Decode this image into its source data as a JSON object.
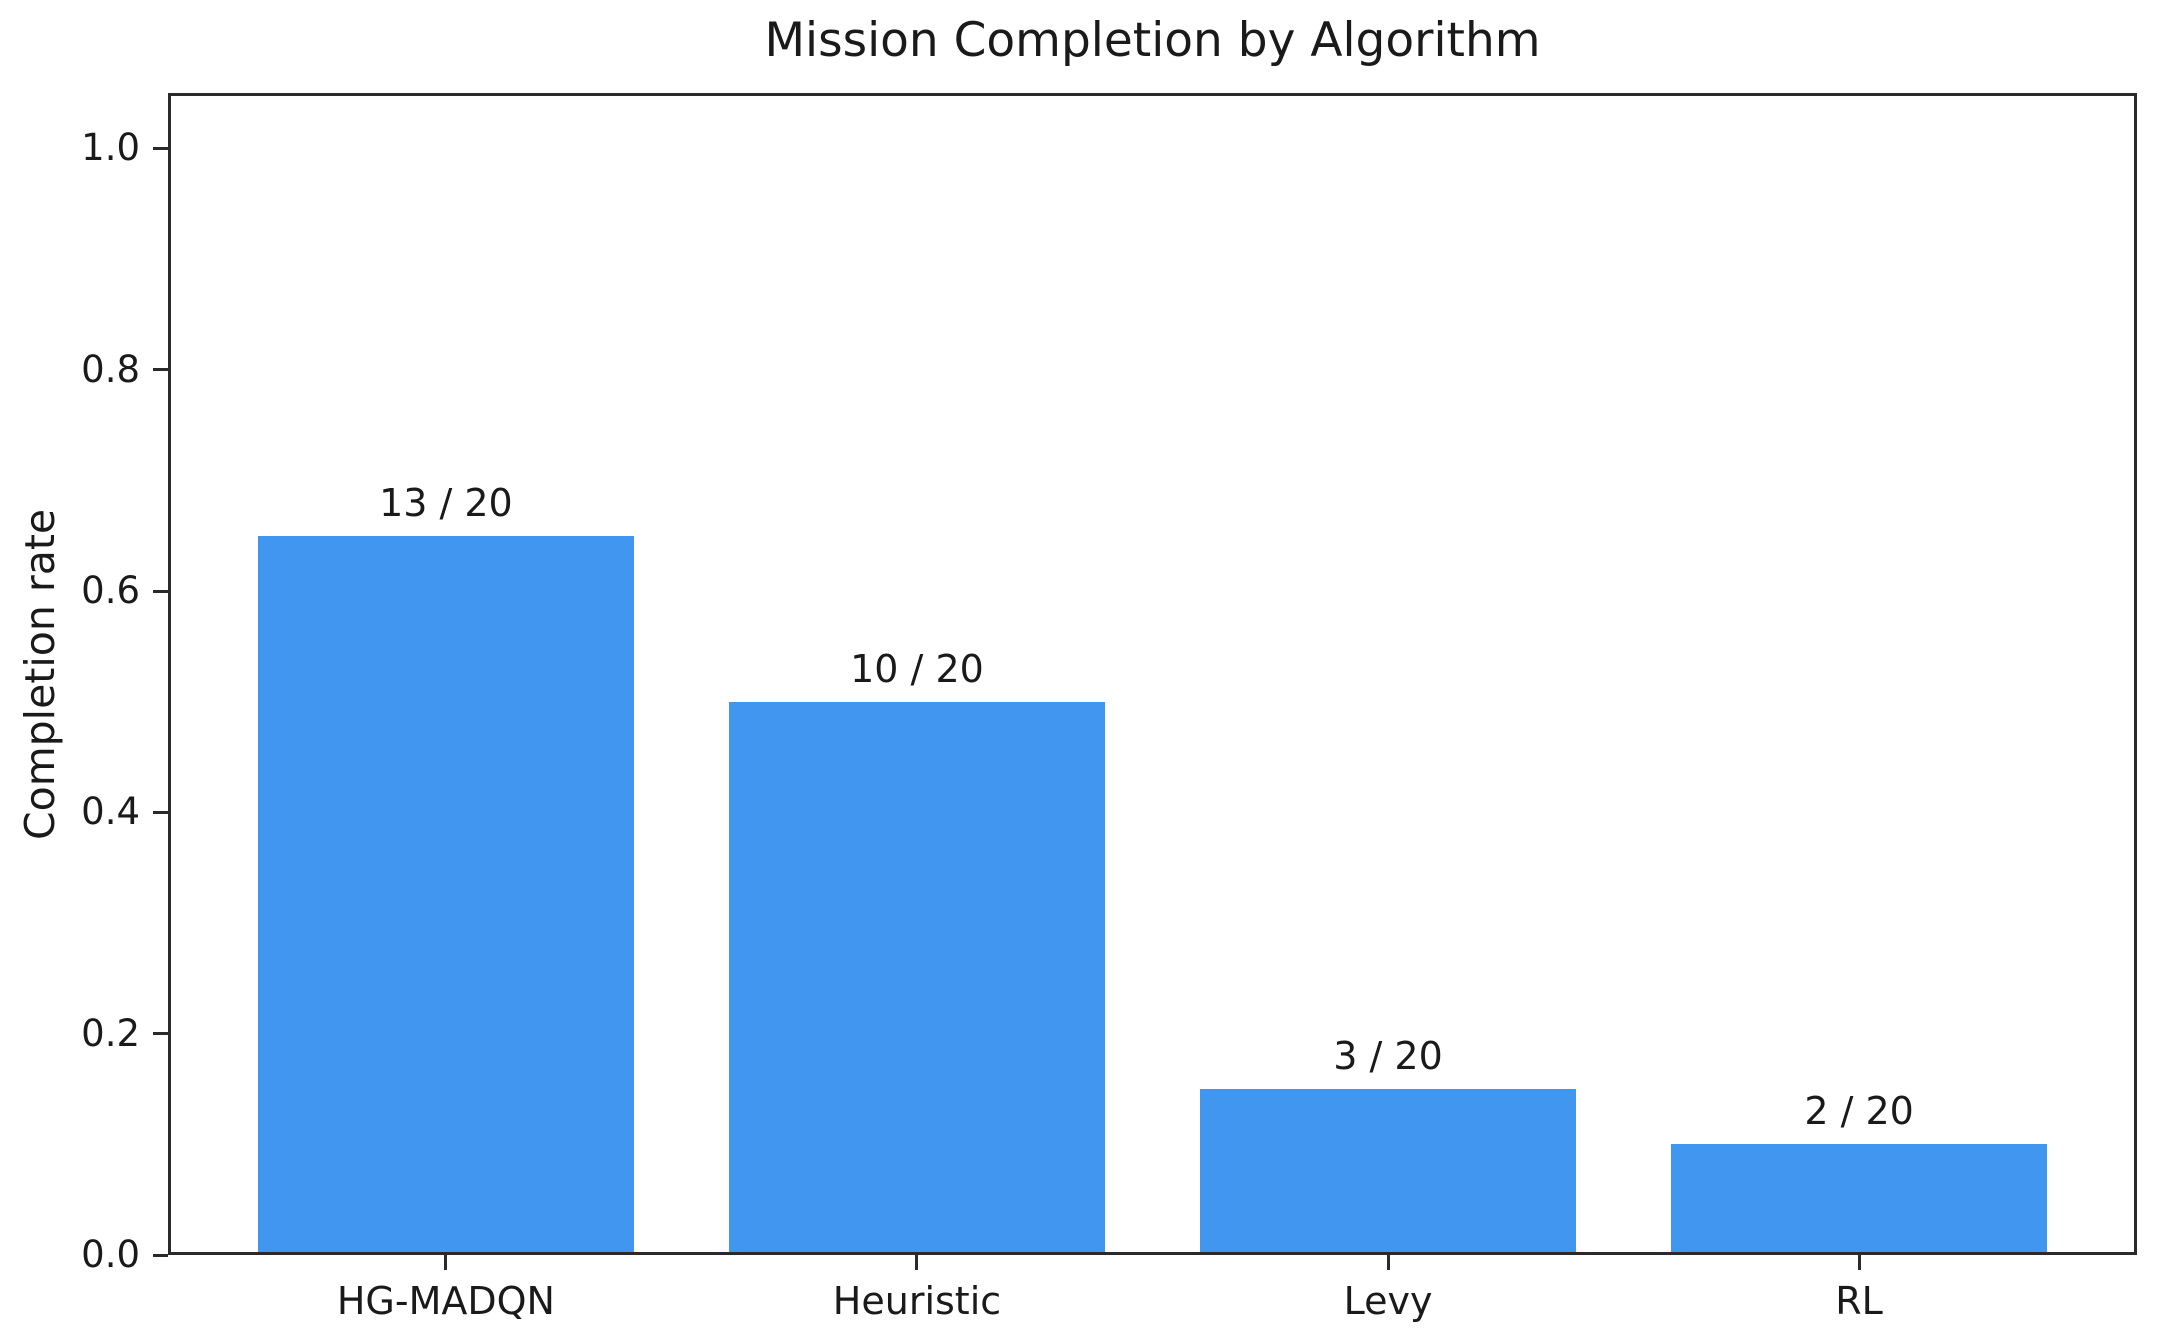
{
  "chart_data": {
    "type": "bar",
    "title": "Mission Completion by Algorithm",
    "xlabel": "",
    "ylabel": "Completion rate",
    "categories": [
      "HG-MADQN",
      "Heuristic",
      "Levy",
      "RL"
    ],
    "values": [
      0.65,
      0.5,
      0.15,
      0.1
    ],
    "bar_labels": [
      "13 / 20",
      "10 / 20",
      "3 / 20",
      "2 / 20"
    ],
    "successes": [
      13,
      10,
      3,
      2
    ],
    "trials_per_algorithm": 20,
    "yticks": [
      "0.0",
      "0.2",
      "0.4",
      "0.6",
      "0.8",
      "1.0"
    ],
    "ylim": [
      0,
      1.05
    ],
    "xlim": [
      -0.59,
      3.59
    ],
    "bar_width": 0.8,
    "bar_color": "#4196F0",
    "text_color": "#1a1a1a",
    "axis_color": "#2a2a2a",
    "grid": "off",
    "legend": "none"
  }
}
